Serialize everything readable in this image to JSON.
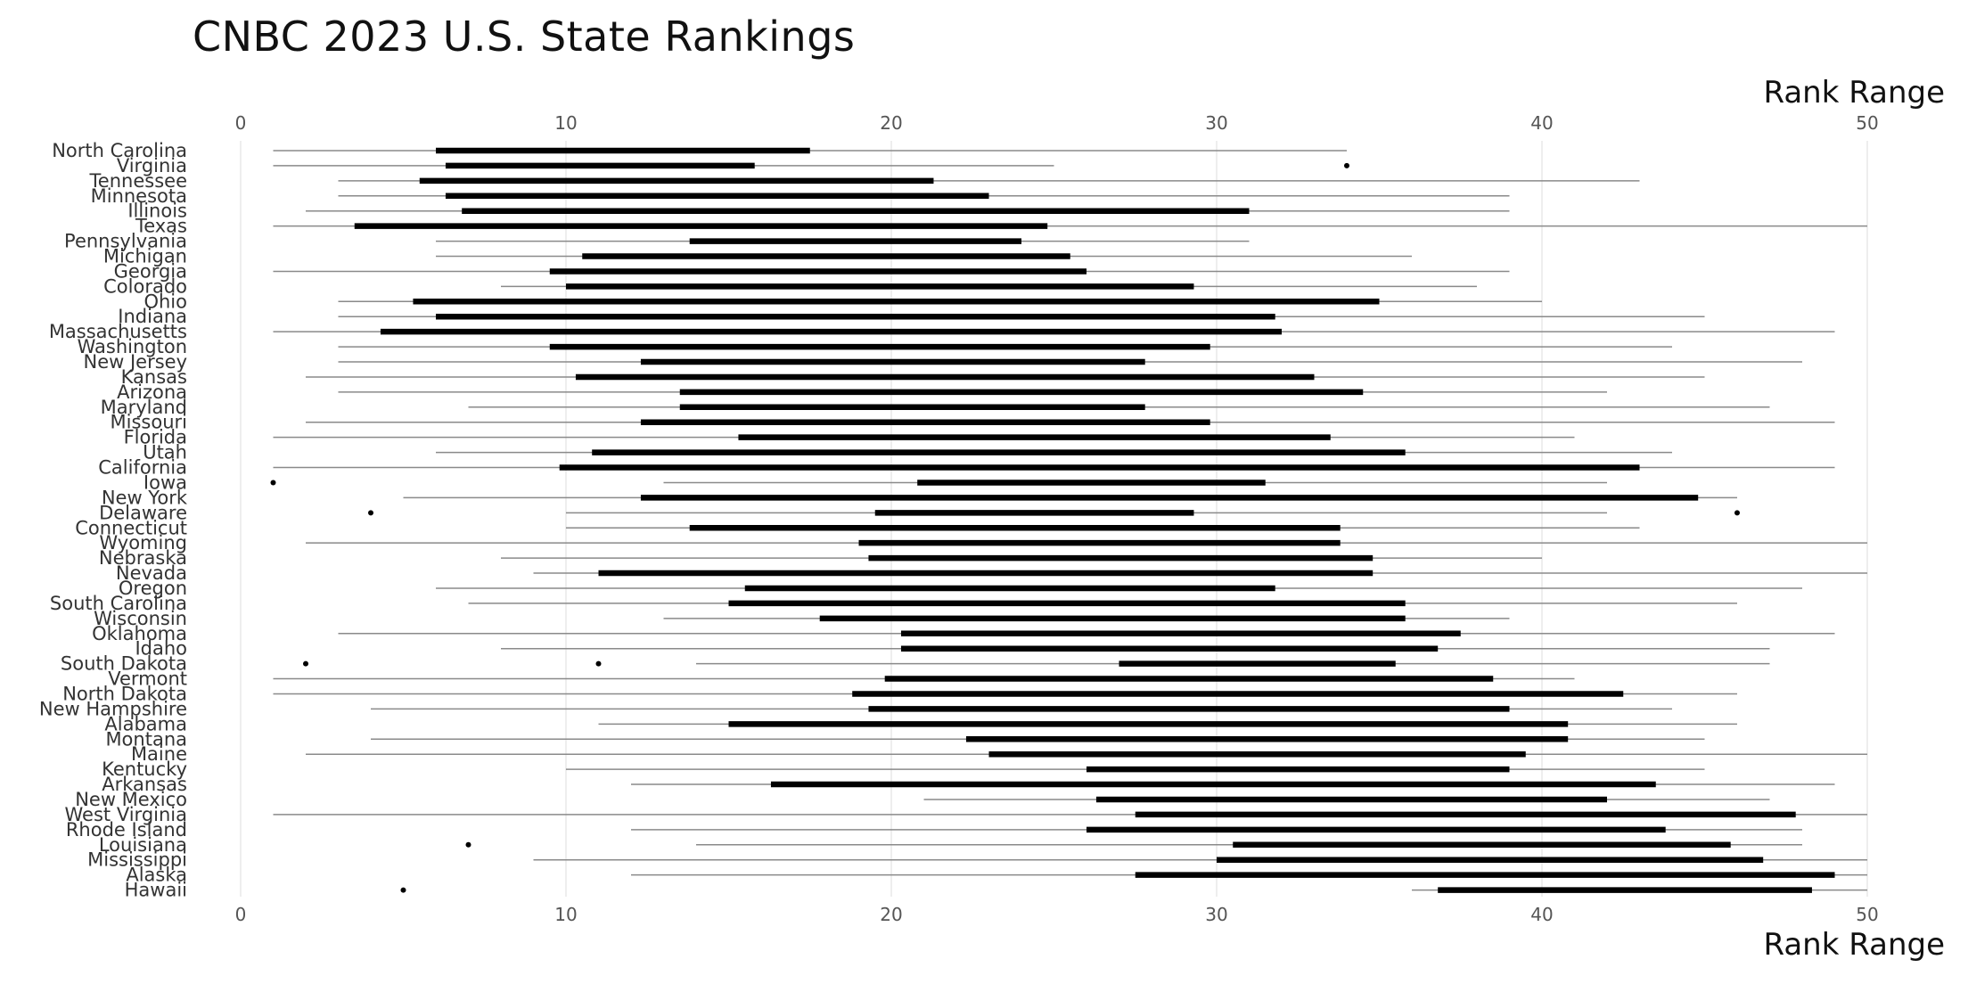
{
  "chart_data": {
    "type": "boxplot",
    "title": "CNBC 2023 U.S. State Rankings",
    "xlabel": "Rank Range",
    "xlim": [
      0,
      50
    ],
    "xticks": [
      0,
      10,
      20,
      30,
      40,
      50
    ],
    "grid": "vertical",
    "series": [
      {
        "state": "North Carolina",
        "whisker": [
          1,
          34
        ],
        "box": [
          6,
          17.5
        ],
        "outliers": []
      },
      {
        "state": "Virginia",
        "whisker": [
          1,
          25
        ],
        "box": [
          6.3,
          15.8
        ],
        "outliers": [
          34
        ]
      },
      {
        "state": "Tennessee",
        "whisker": [
          3,
          43
        ],
        "box": [
          5.5,
          21.3
        ],
        "outliers": []
      },
      {
        "state": "Minnesota",
        "whisker": [
          3,
          39
        ],
        "box": [
          6.3,
          23
        ],
        "outliers": []
      },
      {
        "state": "Illinois",
        "whisker": [
          2,
          39
        ],
        "box": [
          6.8,
          31
        ],
        "outliers": []
      },
      {
        "state": "Texas",
        "whisker": [
          1,
          50
        ],
        "box": [
          3.5,
          24.8
        ],
        "outliers": []
      },
      {
        "state": "Pennsylvania",
        "whisker": [
          6,
          31
        ],
        "box": [
          13.8,
          24
        ],
        "outliers": []
      },
      {
        "state": "Michigan",
        "whisker": [
          6,
          36
        ],
        "box": [
          10.5,
          25.5
        ],
        "outliers": []
      },
      {
        "state": "Georgia",
        "whisker": [
          1,
          39
        ],
        "box": [
          9.5,
          26
        ],
        "outliers": []
      },
      {
        "state": "Colorado",
        "whisker": [
          8,
          38
        ],
        "box": [
          10,
          29.3
        ],
        "outliers": []
      },
      {
        "state": "Ohio",
        "whisker": [
          3,
          40
        ],
        "box": [
          5.3,
          35
        ],
        "outliers": []
      },
      {
        "state": "Indiana",
        "whisker": [
          3,
          45
        ],
        "box": [
          6,
          31.8
        ],
        "outliers": []
      },
      {
        "state": "Massachusetts",
        "whisker": [
          1,
          49
        ],
        "box": [
          4.3,
          32
        ],
        "outliers": []
      },
      {
        "state": "Washington",
        "whisker": [
          3,
          44
        ],
        "box": [
          9.5,
          29.8
        ],
        "outliers": []
      },
      {
        "state": "New Jersey",
        "whisker": [
          3,
          48
        ],
        "box": [
          12.3,
          27.8
        ],
        "outliers": []
      },
      {
        "state": "Kansas",
        "whisker": [
          2,
          45
        ],
        "box": [
          10.3,
          33
        ],
        "outliers": []
      },
      {
        "state": "Arizona",
        "whisker": [
          3,
          42
        ],
        "box": [
          13.5,
          34.5
        ],
        "outliers": []
      },
      {
        "state": "Maryland",
        "whisker": [
          7,
          47
        ],
        "box": [
          13.5,
          27.8
        ],
        "outliers": []
      },
      {
        "state": "Missouri",
        "whisker": [
          2,
          49
        ],
        "box": [
          12.3,
          29.8
        ],
        "outliers": []
      },
      {
        "state": "Florida",
        "whisker": [
          1,
          41
        ],
        "box": [
          15.3,
          33.5
        ],
        "outliers": []
      },
      {
        "state": "Utah",
        "whisker": [
          6,
          44
        ],
        "box": [
          10.8,
          35.8
        ],
        "outliers": []
      },
      {
        "state": "California",
        "whisker": [
          1,
          49
        ],
        "box": [
          9.8,
          43
        ],
        "outliers": []
      },
      {
        "state": "Iowa",
        "whisker": [
          13,
          42
        ],
        "box": [
          20.8,
          31.5
        ],
        "outliers": [
          1
        ]
      },
      {
        "state": "New York",
        "whisker": [
          5,
          46
        ],
        "box": [
          12.3,
          44.8
        ],
        "outliers": []
      },
      {
        "state": "Delaware",
        "whisker": [
          10,
          42
        ],
        "box": [
          19.5,
          29.3
        ],
        "outliers": [
          4,
          46
        ]
      },
      {
        "state": "Connecticut",
        "whisker": [
          10,
          43
        ],
        "box": [
          13.8,
          33.8
        ],
        "outliers": []
      },
      {
        "state": "Wyoming",
        "whisker": [
          2,
          50
        ],
        "box": [
          19,
          33.8
        ],
        "outliers": []
      },
      {
        "state": "Nebraska",
        "whisker": [
          8,
          40
        ],
        "box": [
          19.3,
          34.8
        ],
        "outliers": []
      },
      {
        "state": "Nevada",
        "whisker": [
          9,
          50
        ],
        "box": [
          11,
          34.8
        ],
        "outliers": []
      },
      {
        "state": "Oregon",
        "whisker": [
          6,
          48
        ],
        "box": [
          15.5,
          31.8
        ],
        "outliers": []
      },
      {
        "state": "South Carolina",
        "whisker": [
          7,
          46
        ],
        "box": [
          15,
          35.8
        ],
        "outliers": []
      },
      {
        "state": "Wisconsin",
        "whisker": [
          13,
          39
        ],
        "box": [
          17.8,
          35.8
        ],
        "outliers": []
      },
      {
        "state": "Oklahoma",
        "whisker": [
          3,
          49
        ],
        "box": [
          20.3,
          37.5
        ],
        "outliers": []
      },
      {
        "state": "Idaho",
        "whisker": [
          8,
          47
        ],
        "box": [
          20.3,
          36.8
        ],
        "outliers": []
      },
      {
        "state": "South Dakota",
        "whisker": [
          14,
          47
        ],
        "box": [
          27,
          35.5
        ],
        "outliers": [
          2,
          11
        ]
      },
      {
        "state": "Vermont",
        "whisker": [
          1,
          41
        ],
        "box": [
          19.8,
          38.5
        ],
        "outliers": []
      },
      {
        "state": "North Dakota",
        "whisker": [
          1,
          46
        ],
        "box": [
          18.8,
          42.5
        ],
        "outliers": []
      },
      {
        "state": "New Hampshire",
        "whisker": [
          4,
          44
        ],
        "box": [
          19.3,
          39
        ],
        "outliers": []
      },
      {
        "state": "Alabama",
        "whisker": [
          11,
          46
        ],
        "box": [
          15,
          40.8
        ],
        "outliers": []
      },
      {
        "state": "Montana",
        "whisker": [
          4,
          45
        ],
        "box": [
          22.3,
          40.8
        ],
        "outliers": []
      },
      {
        "state": "Maine",
        "whisker": [
          2,
          50
        ],
        "box": [
          23,
          39.5
        ],
        "outliers": []
      },
      {
        "state": "Kentucky",
        "whisker": [
          10,
          45
        ],
        "box": [
          26,
          39
        ],
        "outliers": []
      },
      {
        "state": "Arkansas",
        "whisker": [
          12,
          49
        ],
        "box": [
          16.3,
          43.5
        ],
        "outliers": []
      },
      {
        "state": "New Mexico",
        "whisker": [
          21,
          47
        ],
        "box": [
          26.3,
          42
        ],
        "outliers": []
      },
      {
        "state": "West Virginia",
        "whisker": [
          1,
          50
        ],
        "box": [
          27.5,
          47.8
        ],
        "outliers": []
      },
      {
        "state": "Rhode Island",
        "whisker": [
          12,
          48
        ],
        "box": [
          26,
          43.8
        ],
        "outliers": []
      },
      {
        "state": "Louisiana",
        "whisker": [
          14,
          48
        ],
        "box": [
          30.5,
          45.8
        ],
        "outliers": [
          7
        ]
      },
      {
        "state": "Mississippi",
        "whisker": [
          9,
          50
        ],
        "box": [
          30,
          46.8
        ],
        "outliers": []
      },
      {
        "state": "Alaska",
        "whisker": [
          12,
          50
        ],
        "box": [
          27.5,
          49
        ],
        "outliers": []
      },
      {
        "state": "Hawaii",
        "whisker": [
          36,
          50
        ],
        "box": [
          36.8,
          48.3
        ],
        "outliers": [
          5
        ]
      }
    ]
  }
}
